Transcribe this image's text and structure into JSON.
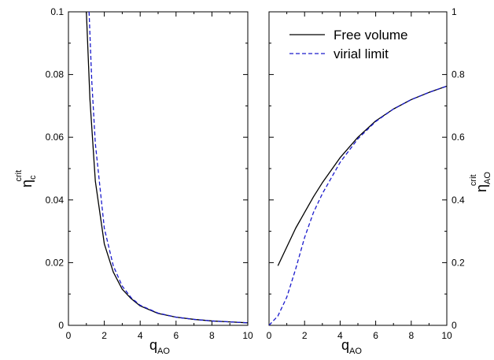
{
  "chart_data": [
    {
      "type": "line",
      "panel": "left",
      "xlabel": "q",
      "xlabel_sub": "AO",
      "ylabel": "η",
      "ylabel_sub": "c",
      "ylabel_sup": "crit",
      "xlim": [
        0,
        10
      ],
      "ylim": [
        0,
        0.1
      ],
      "xticks": [
        "0",
        "2",
        "4",
        "6",
        "8",
        "10"
      ],
      "yticks": [
        "0",
        "0.02",
        "0.04",
        "0.06",
        "0.08",
        "0.1"
      ],
      "y_axis_side": "left",
      "grid": false,
      "series": [
        {
          "name": "Free volume",
          "color": "#000000",
          "dash": "solid",
          "x": [
            1.0,
            1.2,
            1.5,
            2.0,
            2.5,
            3.0,
            3.5,
            4.0,
            5.0,
            6.0,
            7.0,
            8.0,
            9.0,
            10.0
          ],
          "y": [
            0.1,
            0.072,
            0.046,
            0.026,
            0.017,
            0.0115,
            0.0085,
            0.0062,
            0.0038,
            0.0026,
            0.0019,
            0.0014,
            0.0011,
            0.0008
          ]
        },
        {
          "name": "virial limit",
          "color": "#1a1acc",
          "dash": "dashed",
          "x": [
            1.15,
            1.3,
            1.5,
            2.0,
            2.5,
            3.0,
            3.5,
            4.0,
            5.0,
            6.0,
            7.0,
            8.0,
            9.0,
            10.0
          ],
          "y": [
            0.1,
            0.078,
            0.058,
            0.031,
            0.019,
            0.0125,
            0.0088,
            0.0064,
            0.0039,
            0.0026,
            0.0019,
            0.0014,
            0.0011,
            0.0008
          ]
        }
      ]
    },
    {
      "type": "line",
      "panel": "right",
      "xlabel": "q",
      "xlabel_sub": "AO",
      "ylabel": "η",
      "ylabel_sub": "AO",
      "ylabel_sup": "crit",
      "xlim": [
        0,
        10
      ],
      "ylim": [
        0,
        1
      ],
      "xticks": [
        "0",
        "2",
        "4",
        "6",
        "8",
        "10"
      ],
      "yticks": [
        "0",
        "0.2",
        "0.4",
        "0.6",
        "0.8",
        "1"
      ],
      "y_axis_side": "right",
      "grid": false,
      "legend_position": "top-right",
      "series": [
        {
          "name": "Free volume",
          "color": "#000000",
          "dash": "solid",
          "x": [
            0.5,
            1.0,
            1.5,
            2.0,
            2.5,
            3.0,
            3.5,
            4.0,
            5.0,
            6.0,
            7.0,
            8.0,
            9.0,
            10.0
          ],
          "y": [
            0.19,
            0.25,
            0.31,
            0.36,
            0.41,
            0.455,
            0.495,
            0.535,
            0.6,
            0.652,
            0.69,
            0.72,
            0.743,
            0.763
          ]
        },
        {
          "name": "virial limit",
          "color": "#1a1acc",
          "dash": "dashed",
          "x": [
            0.0,
            0.5,
            1.0,
            1.5,
            2.0,
            2.5,
            3.0,
            3.5,
            4.0,
            5.0,
            6.0,
            7.0,
            8.0,
            9.0,
            10.0
          ],
          "y": [
            0.0,
            0.03,
            0.09,
            0.18,
            0.28,
            0.36,
            0.42,
            0.47,
            0.52,
            0.595,
            0.65,
            0.69,
            0.72,
            0.743,
            0.763
          ]
        }
      ]
    }
  ]
}
